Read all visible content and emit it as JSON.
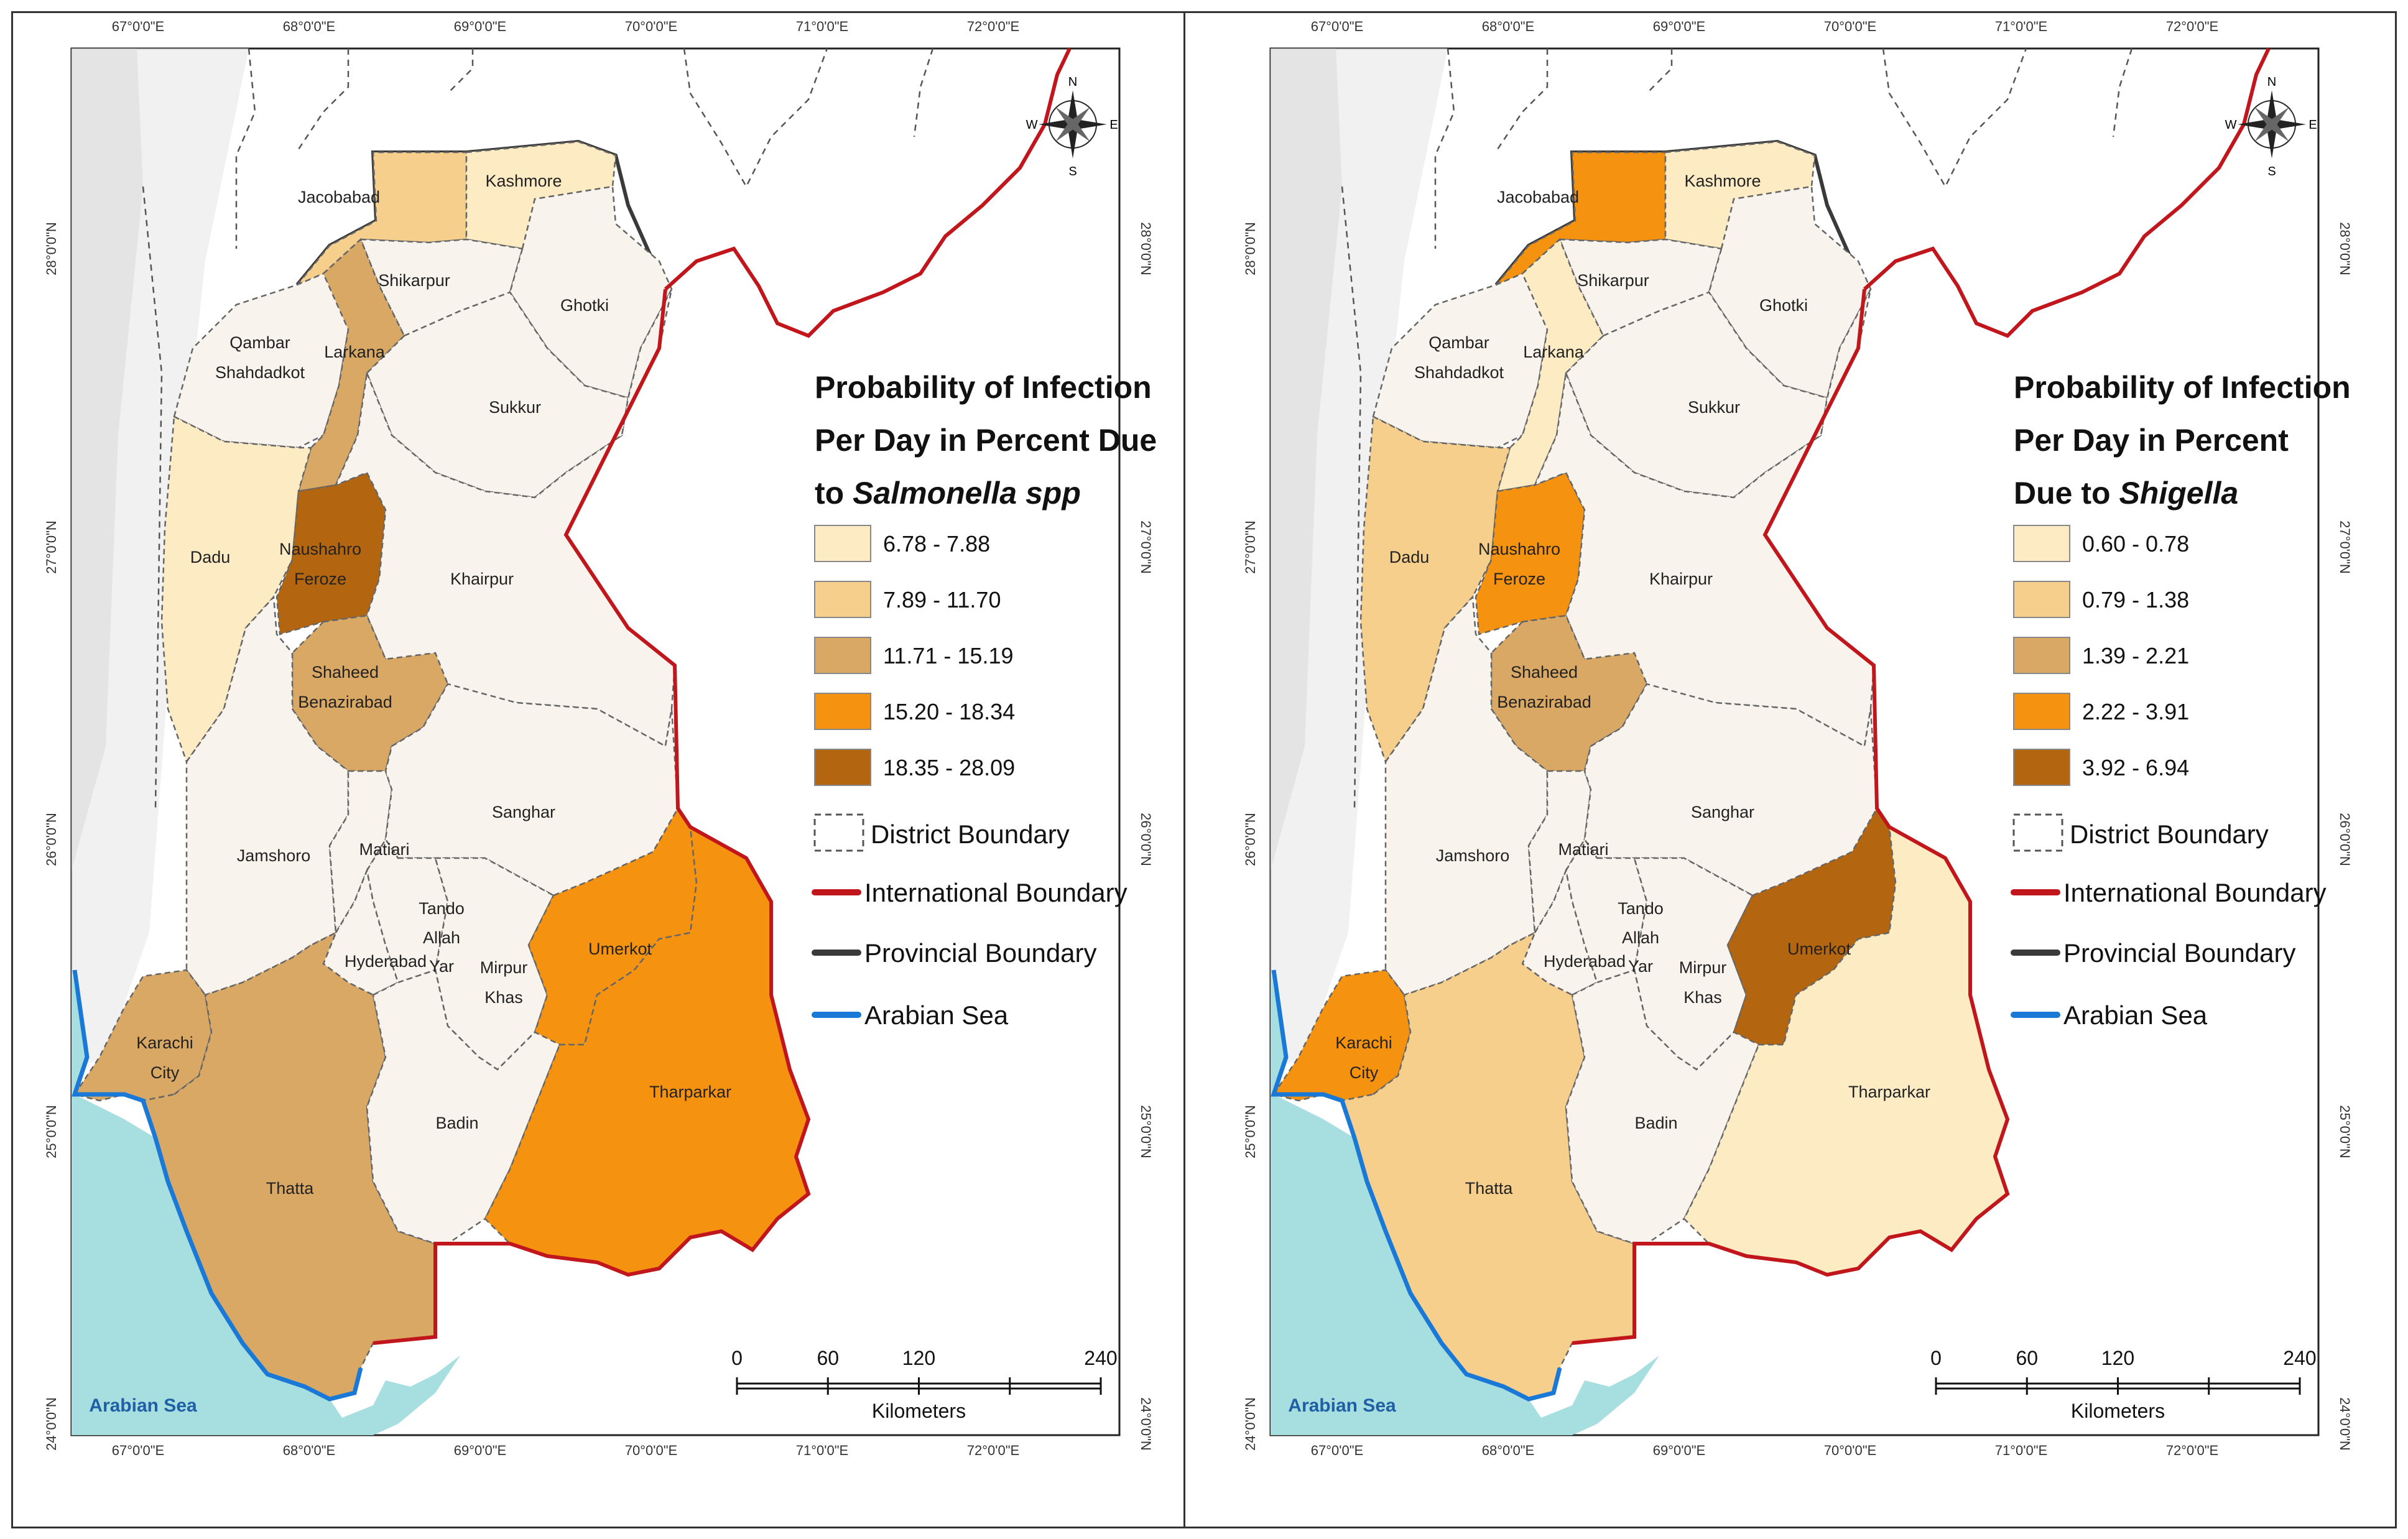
{
  "axes": {
    "longitudes": [
      "67°0'0\"E",
      "68°0'0\"E",
      "69°0'0\"E",
      "70°0'0\"E",
      "71°0'0\"E",
      "72°0'0\"E"
    ],
    "latitudes": [
      "28°0'0\"N",
      "27°0'0\"N",
      "26°0'0\"N",
      "25°0'0\"N",
      "24°0'0\"N"
    ]
  },
  "compass": {
    "n": "N",
    "s": "S",
    "e": "E",
    "w": "W"
  },
  "sea_label": "Arabian Sea",
  "scale": {
    "ticks": [
      "0",
      "60",
      "120",
      "240"
    ],
    "unit": "Kilometers"
  },
  "boundary_legend": {
    "district": "District Boundary",
    "international": "International Boundary",
    "provincial": "Provincial Boundary",
    "sea": "Arabian Sea"
  },
  "districts": [
    "Jacobabad",
    "Kashmore",
    "Shikarpur",
    "Ghotki",
    "Qambar Shahdadkot",
    "Larkana",
    "Sukkur",
    "Dadu",
    "Naushahro Feroze",
    "Khairpur",
    "Shaheed Benazirabad",
    "Jamshoro",
    "Matiari",
    "Sanghar",
    "Tando Allah Yar",
    "Hyderabad",
    "Mirpur Khas",
    "Umerkot",
    "Karachi City",
    "Thatta",
    "Badin",
    "Tharparkar"
  ],
  "district_labels": {
    "Jacobabad": "Jacobabad",
    "Kashmore": "Kashmore",
    "Shikarpur": "Shikarpur",
    "Ghotki": "Ghotki",
    "Qambar1": "Qambar",
    "Qambar2": "Shahdadkot",
    "Larkana": "Larkana",
    "Sukkur": "Sukkur",
    "Dadu": "Dadu",
    "Naushahro1": "Naushahro",
    "Naushahro2": "Feroze",
    "Khairpur": "Khairpur",
    "Shaheed1": "Shaheed",
    "Shaheed2": "Benazirabad",
    "Jamshoro": "Jamshoro",
    "Matiari": "Matiari",
    "Sanghar": "Sanghar",
    "Tando1": "Tando",
    "Tando2": "Allah",
    "Tando3": "Yar",
    "Hyderabad": "Hyderabad",
    "Mirpur1": "Mirpur",
    "Mirpur2": "Khas",
    "Umerkot": "Umerkot",
    "Karachi1": "Karachi",
    "Karachi2": "City",
    "Thatta": "Thatta",
    "Badin": "Badin",
    "Tharparkar": "Tharparkar"
  },
  "maps": [
    {
      "id": "salmonella",
      "legend_title": [
        "Probability of Infection",
        "Per Day in Percent Due",
        "to "
      ],
      "legend_title_italic": "Salmonella spp",
      "classes": [
        {
          "label": "6.78 - 7.88",
          "color": "#fdebc4"
        },
        {
          "label": "7.89 - 11.70",
          "color": "#f7cf8c"
        },
        {
          "label": "11.71 - 15.19",
          "color": "#d9a865"
        },
        {
          "label": "15.20 - 18.34",
          "color": "#f5920f"
        },
        {
          "label": "18.35 - 28.09",
          "color": "#b4650f"
        }
      ],
      "district_class": {
        "Jacobabad": 1,
        "Kashmore": 0,
        "Shikarpur": -1,
        "Ghotki": -1,
        "Qambar Shahdadkot": -1,
        "Larkana": 2,
        "Sukkur": -1,
        "Dadu": 0,
        "Naushahro Feroze": 4,
        "Khairpur": -1,
        "Shaheed Benazirabad": 2,
        "Jamshoro": -1,
        "Matiari": -1,
        "Sanghar": -1,
        "Tando Allah Yar": -1,
        "Hyderabad": -1,
        "Mirpur Khas": -1,
        "Umerkot": 3,
        "Karachi City": 2,
        "Thatta": 2,
        "Badin": -1,
        "Tharparkar": 3
      }
    },
    {
      "id": "shigella",
      "legend_title": [
        "Probability of Infection",
        "Per Day in Percent",
        "Due to "
      ],
      "legend_title_italic": "Shigella",
      "classes": [
        {
          "label": "0.60 - 0.78",
          "color": "#fdebc4"
        },
        {
          "label": "0.79 - 1.38",
          "color": "#f7cf8c"
        },
        {
          "label": "1.39 - 2.21",
          "color": "#d9a865"
        },
        {
          "label": "2.22 - 3.91",
          "color": "#f5920f"
        },
        {
          "label": "3.92 - 6.94",
          "color": "#b4650f"
        }
      ],
      "district_class": {
        "Jacobabad": 3,
        "Kashmore": 0,
        "Shikarpur": -1,
        "Ghotki": -1,
        "Qambar Shahdadkot": -1,
        "Larkana": 0,
        "Sukkur": -1,
        "Dadu": 1,
        "Naushahro Feroze": 3,
        "Khairpur": -1,
        "Shaheed Benazirabad": 2,
        "Jamshoro": -1,
        "Matiari": -1,
        "Sanghar": -1,
        "Tando Allah Yar": -1,
        "Hyderabad": -1,
        "Mirpur Khas": -1,
        "Umerkot": 4,
        "Karachi City": 3,
        "Thatta": 1,
        "Badin": -1,
        "Tharparkar": 0
      }
    }
  ],
  "colors": {
    "no_class": "#f8f3ec",
    "outside": "#ffffff",
    "relief": "#dcdcdc",
    "international": "#c0161c",
    "provincial": "#3a3a3a",
    "sea_line": "#1a78d6",
    "sea_fill": "#a7dedf"
  }
}
